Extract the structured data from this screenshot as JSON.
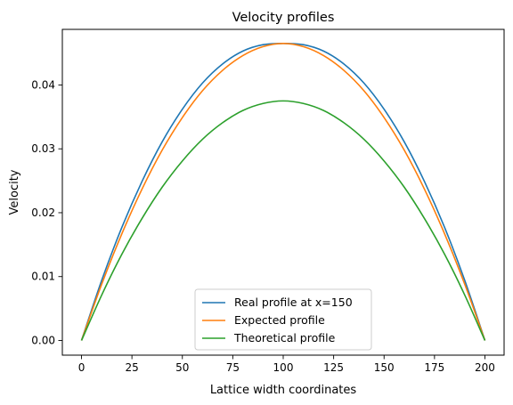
{
  "chart_data": {
    "type": "line",
    "title": "Velocity profiles",
    "xlabel": "Lattice width coordinates",
    "ylabel": "Velocity",
    "xlim": [
      -9.5,
      209.5
    ],
    "ylim": [
      -0.0023,
      0.0487
    ],
    "xticks": [
      0,
      25,
      50,
      75,
      100,
      125,
      150,
      175,
      200
    ],
    "xtick_labels": [
      "0",
      "25",
      "50",
      "75",
      "100",
      "125",
      "150",
      "175",
      "200"
    ],
    "yticks": [
      0.0,
      0.01,
      0.02,
      0.03,
      0.04
    ],
    "ytick_labels": [
      "0.00",
      "0.01",
      "0.02",
      "0.03",
      "0.04"
    ],
    "grid": false,
    "legend_position": "lower-center",
    "series": [
      {
        "name": "Real profile at x=150",
        "color": "#1f77b4",
        "x": [
          0,
          10,
          20,
          30,
          40,
          50,
          60,
          70,
          80,
          90,
          100,
          110,
          120,
          130,
          140,
          150,
          160,
          170,
          180,
          190,
          200
        ],
        "y": [
          0.0,
          0.0094,
          0.0177,
          0.0249,
          0.0311,
          0.0362,
          0.0403,
          0.0433,
          0.0453,
          0.0463,
          0.0465,
          0.0463,
          0.0453,
          0.0433,
          0.0403,
          0.0362,
          0.0311,
          0.0249,
          0.0177,
          0.0094,
          0.0
        ]
      },
      {
        "name": "Expected profile",
        "color": "#ff7f0e",
        "x": [
          0,
          10,
          20,
          30,
          40,
          50,
          60,
          70,
          80,
          90,
          100,
          110,
          120,
          130,
          140,
          150,
          160,
          170,
          180,
          190,
          200
        ],
        "y": [
          0.0,
          0.0088,
          0.0167,
          0.0237,
          0.0298,
          0.0349,
          0.0391,
          0.0423,
          0.0446,
          0.046,
          0.0465,
          0.046,
          0.0446,
          0.0423,
          0.0391,
          0.0349,
          0.0298,
          0.0237,
          0.0167,
          0.0088,
          0.0
        ]
      },
      {
        "name": "Theoretical profile",
        "color": "#2ca02c",
        "x": [
          0,
          10,
          20,
          30,
          40,
          50,
          60,
          70,
          80,
          90,
          100,
          110,
          120,
          130,
          140,
          150,
          160,
          170,
          180,
          190,
          200
        ],
        "y": [
          0.0,
          0.0071,
          0.0135,
          0.0191,
          0.024,
          0.0281,
          0.0315,
          0.0341,
          0.036,
          0.0371,
          0.0375,
          0.0371,
          0.036,
          0.0341,
          0.0315,
          0.0281,
          0.024,
          0.0191,
          0.0135,
          0.0071,
          0.0
        ]
      }
    ]
  }
}
